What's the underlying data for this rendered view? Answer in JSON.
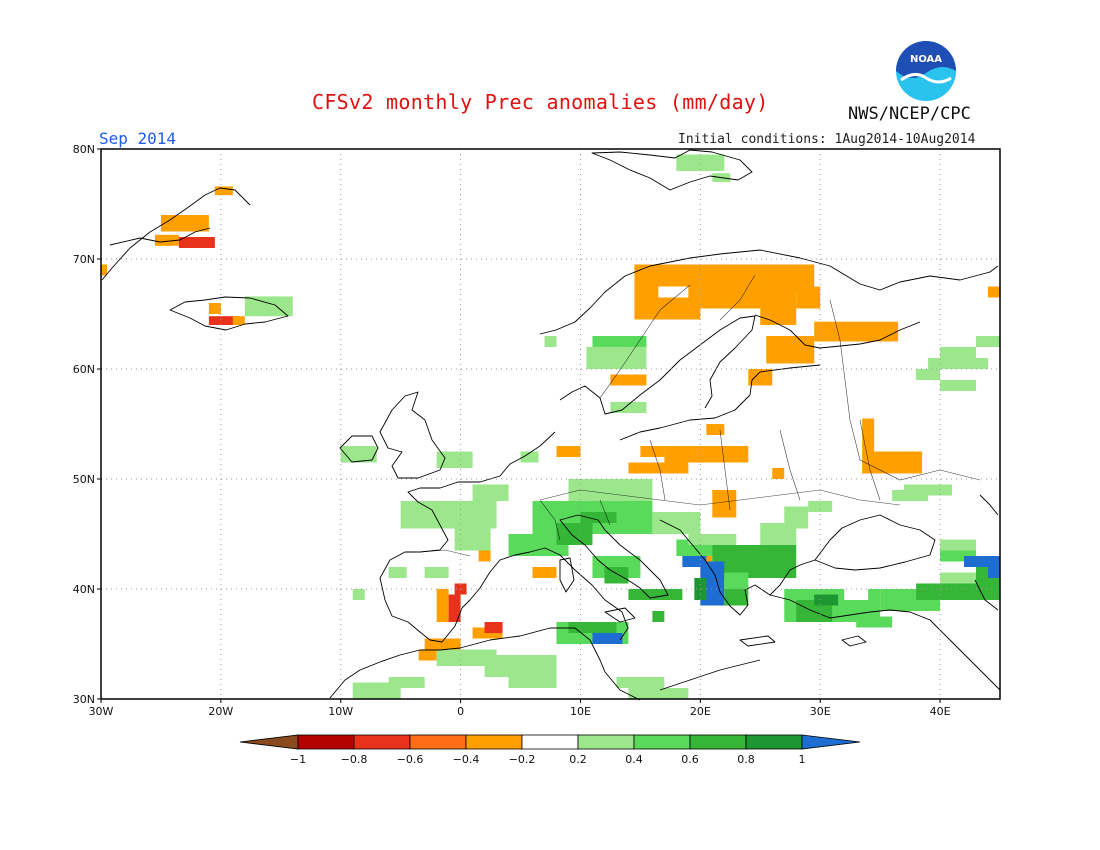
{
  "title": "CFSv2 monthly Prec anomalies (mm/day)",
  "agency": "NWS/NCEP/CPC",
  "logo_text": "NOAA",
  "forecast_month": "Sep 2014",
  "initial_conditions": "Initial conditions: 1Aug2014-10Aug2014",
  "map": {
    "lon_range": [
      -30,
      45
    ],
    "lat_range": [
      30,
      80
    ],
    "lat_ticks": [
      {
        "value": 80,
        "label": "80N"
      },
      {
        "value": 70,
        "label": "70N"
      },
      {
        "value": 60,
        "label": "60N"
      },
      {
        "value": 50,
        "label": "50N"
      },
      {
        "value": 40,
        "label": "40N"
      },
      {
        "value": 30,
        "label": "30N"
      }
    ],
    "lon_ticks": [
      {
        "value": -30,
        "label": "30W"
      },
      {
        "value": -20,
        "label": "20W"
      },
      {
        "value": -10,
        "label": "10W"
      },
      {
        "value": 0,
        "label": "0"
      },
      {
        "value": 10,
        "label": "10E"
      },
      {
        "value": 20,
        "label": "20E"
      },
      {
        "value": 30,
        "label": "30E"
      },
      {
        "value": 40,
        "label": "40E"
      }
    ]
  },
  "colors": {
    "b_m1": "#8a4a1e",
    "b_m08": "#b50000",
    "b_m06": "#e8321c",
    "b_m04": "#ff6e14",
    "b_m02": "#ffa000",
    "b_0": "#ffffff",
    "b_p02": "#9ce68c",
    "b_p04": "#5ada5a",
    "b_p06": "#36b636",
    "b_p08": "#1e9632",
    "b_p1": "#1e6ed2",
    "coast": "#000000",
    "grid": "#999999",
    "logo_blue": "#1f4fb4",
    "logo_cyan": "#29c3ee"
  },
  "colorbar": {
    "bins": [
      "b_m1",
      "b_m08",
      "b_m06",
      "b_m04",
      "b_m02",
      "b_0",
      "b_p02",
      "b_p04",
      "b_p06",
      "b_p08",
      "b_p1"
    ],
    "labels": [
      "−1",
      "−0.8",
      "−0.6",
      "−0.4",
      "−0.2",
      "0.2",
      "0.4",
      "0.6",
      "0.8",
      "1"
    ]
  },
  "anomaly_cells": [
    {
      "lon": -25,
      "lat": 72.5,
      "w": 4,
      "h": 1.5,
      "c": "b_m02"
    },
    {
      "lon": -25.5,
      "lat": 71.2,
      "w": 2,
      "h": 1,
      "c": "b_m02"
    },
    {
      "lon": -23.5,
      "lat": 71,
      "w": 3,
      "h": 1,
      "c": "b_m06"
    },
    {
      "lon": -20.5,
      "lat": 75.8,
      "w": 1.5,
      "h": 0.8,
      "c": "b_m02"
    },
    {
      "lon": -30,
      "lat": 68.5,
      "w": 0.5,
      "h": 1,
      "c": "b_m02"
    },
    {
      "lon": -21,
      "lat": 65,
      "w": 1,
      "h": 1,
      "c": "b_m02"
    },
    {
      "lon": -21,
      "lat": 64,
      "w": 2.5,
      "h": 0.8,
      "c": "b_m06"
    },
    {
      "lon": -19,
      "lat": 64,
      "w": 1,
      "h": 0.8,
      "c": "b_m02"
    },
    {
      "lon": -18,
      "lat": 64.8,
      "w": 4,
      "h": 1.8,
      "c": "b_p02"
    },
    {
      "lon": 18,
      "lat": 78,
      "w": 4,
      "h": 1.5,
      "c": "b_p02"
    },
    {
      "lon": 21,
      "lat": 77,
      "w": 1.5,
      "h": 0.8,
      "c": "b_p02"
    },
    {
      "lon": 14.5,
      "lat": 67,
      "w": 15,
      "h": 2.5,
      "c": "b_m02"
    },
    {
      "lon": 14.5,
      "lat": 64.5,
      "w": 5.5,
      "h": 2.5,
      "c": "b_m02"
    },
    {
      "lon": 16.5,
      "lat": 66.5,
      "w": 2.5,
      "h": 1,
      "c": "b_0"
    },
    {
      "lon": 20,
      "lat": 65.5,
      "w": 8,
      "h": 3,
      "c": "b_m02"
    },
    {
      "lon": 25,
      "lat": 64,
      "w": 3,
      "h": 2,
      "c": "b_m02"
    },
    {
      "lon": 28,
      "lat": 65.5,
      "w": 2,
      "h": 2,
      "c": "b_m02"
    },
    {
      "lon": 29.5,
      "lat": 62.5,
      "w": 7,
      "h": 1.8,
      "c": "b_m02"
    },
    {
      "lon": 25.5,
      "lat": 60.5,
      "w": 4,
      "h": 2.5,
      "c": "b_m02"
    },
    {
      "lon": 44,
      "lat": 66.5,
      "w": 1,
      "h": 1,
      "c": "b_m02"
    },
    {
      "lon": 24,
      "lat": 58.5,
      "w": 2,
      "h": 1.5,
      "c": "b_m02"
    },
    {
      "lon": 12.5,
      "lat": 58.5,
      "w": 3,
      "h": 1,
      "c": "b_m02"
    },
    {
      "lon": 17,
      "lat": 51.5,
      "w": 7,
      "h": 1.5,
      "c": "b_m02"
    },
    {
      "lon": 14,
      "lat": 50.5,
      "w": 5,
      "h": 1,
      "c": "b_m02"
    },
    {
      "lon": 15,
      "lat": 52,
      "w": 2,
      "h": 1,
      "c": "b_m02"
    },
    {
      "lon": 20.5,
      "lat": 54,
      "w": 1.5,
      "h": 1,
      "c": "b_m02"
    },
    {
      "lon": 8,
      "lat": 52,
      "w": 2,
      "h": 1,
      "c": "b_m02"
    },
    {
      "lon": 33.5,
      "lat": 50.5,
      "w": 5,
      "h": 2,
      "c": "b_m02"
    },
    {
      "lon": 33.5,
      "lat": 52.5,
      "w": 1,
      "h": 3,
      "c": "b_m02"
    },
    {
      "lon": 21,
      "lat": 46.5,
      "w": 2,
      "h": 2.5,
      "c": "b_m02"
    },
    {
      "lon": 26,
      "lat": 50,
      "w": 1,
      "h": 1,
      "c": "b_m02"
    },
    {
      "lon": 1.5,
      "lat": 42.5,
      "w": 1,
      "h": 1,
      "c": "b_m02"
    },
    {
      "lon": -2,
      "lat": 37,
      "w": 1,
      "h": 3,
      "c": "b_m02"
    },
    {
      "lon": -1,
      "lat": 37,
      "w": 1,
      "h": 2.5,
      "c": "b_m06"
    },
    {
      "lon": -0.5,
      "lat": 39.5,
      "w": 1,
      "h": 1,
      "c": "b_m06"
    },
    {
      "lon": 1,
      "lat": 35.5,
      "w": 2.5,
      "h": 1,
      "c": "b_m02"
    },
    {
      "lon": -3,
      "lat": 34.5,
      "w": 3,
      "h": 1,
      "c": "b_m02"
    },
    {
      "lon": -3.5,
      "lat": 33.5,
      "w": 1.5,
      "h": 1,
      "c": "b_m02"
    },
    {
      "lon": 2,
      "lat": 36,
      "w": 1.5,
      "h": 1,
      "c": "b_m06"
    },
    {
      "lon": 19.5,
      "lat": 42.5,
      "w": 1.5,
      "h": 1,
      "c": "b_m02"
    },
    {
      "lon": 6,
      "lat": 41,
      "w": 2,
      "h": 1,
      "c": "b_m02"
    },
    {
      "lon": 10.5,
      "lat": 60,
      "w": 5,
      "h": 2,
      "c": "b_p02"
    },
    {
      "lon": 11,
      "lat": 62,
      "w": 4.5,
      "h": 1,
      "c": "b_p04"
    },
    {
      "lon": 7,
      "lat": 62,
      "w": 1,
      "h": 1,
      "c": "b_p02"
    },
    {
      "lon": 12.5,
      "lat": 56,
      "w": 3,
      "h": 1,
      "c": "b_p02"
    },
    {
      "lon": -10,
      "lat": 51.5,
      "w": 3,
      "h": 1.5,
      "c": "b_p02"
    },
    {
      "lon": -2,
      "lat": 51,
      "w": 3,
      "h": 1.5,
      "c": "b_p02"
    },
    {
      "lon": 5,
      "lat": 51.5,
      "w": 1.5,
      "h": 1,
      "c": "b_p02"
    },
    {
      "lon": -5,
      "lat": 45.5,
      "w": 8,
      "h": 2.5,
      "c": "b_p02"
    },
    {
      "lon": -0.5,
      "lat": 43.5,
      "w": 3,
      "h": 2,
      "c": "b_p02"
    },
    {
      "lon": 1,
      "lat": 48,
      "w": 3,
      "h": 1.5,
      "c": "b_p02"
    },
    {
      "lon": 4,
      "lat": 43,
      "w": 5,
      "h": 2,
      "c": "b_p04"
    },
    {
      "lon": 6,
      "lat": 45,
      "w": 10,
      "h": 3,
      "c": "b_p04"
    },
    {
      "lon": 9,
      "lat": 48,
      "w": 7,
      "h": 2,
      "c": "b_p02"
    },
    {
      "lon": 8,
      "lat": 44,
      "w": 3,
      "h": 2,
      "c": "b_p06"
    },
    {
      "lon": 10,
      "lat": 46,
      "w": 3,
      "h": 1,
      "c": "b_p06"
    },
    {
      "lon": 16,
      "lat": 45,
      "w": 4,
      "h": 2,
      "c": "b_p02"
    },
    {
      "lon": 11,
      "lat": 41,
      "w": 4,
      "h": 2,
      "c": "b_p04"
    },
    {
      "lon": 12,
      "lat": 40.5,
      "w": 2,
      "h": 1.5,
      "c": "b_p06"
    },
    {
      "lon": 14,
      "lat": 39,
      "w": 3.5,
      "h": 1,
      "c": "b_p06"
    },
    {
      "lon": 16.5,
      "lat": 39,
      "w": 2,
      "h": 1,
      "c": "b_p06"
    },
    {
      "lon": 16,
      "lat": 37,
      "w": 1,
      "h": 1,
      "c": "b_p06"
    },
    {
      "lon": 18,
      "lat": 43,
      "w": 4,
      "h": 1.5,
      "c": "b_p04"
    },
    {
      "lon": 19,
      "lat": 44,
      "w": 4,
      "h": 1,
      "c": "b_p02"
    },
    {
      "lon": 21,
      "lat": 41,
      "w": 7,
      "h": 3,
      "c": "b_p06"
    },
    {
      "lon": 23,
      "lat": 43,
      "w": 3,
      "h": 1,
      "c": "b_p06"
    },
    {
      "lon": 25,
      "lat": 44,
      "w": 3,
      "h": 2,
      "c": "b_p02"
    },
    {
      "lon": 27,
      "lat": 45.5,
      "w": 2,
      "h": 2,
      "c": "b_p02"
    },
    {
      "lon": 29,
      "lat": 47,
      "w": 2,
      "h": 1,
      "c": "b_p02"
    },
    {
      "lon": 18.5,
      "lat": 42,
      "w": 2,
      "h": 1,
      "c": "b_p1"
    },
    {
      "lon": 20,
      "lat": 38.5,
      "w": 2,
      "h": 4,
      "c": "b_p1"
    },
    {
      "lon": 19.5,
      "lat": 39,
      "w": 1,
      "h": 2,
      "c": "b_p08"
    },
    {
      "lon": 22,
      "lat": 38.5,
      "w": 2,
      "h": 2,
      "c": "b_p06"
    },
    {
      "lon": 22,
      "lat": 40,
      "w": 2,
      "h": 1.5,
      "c": "b_p04"
    },
    {
      "lon": 27,
      "lat": 37,
      "w": 8,
      "h": 3,
      "c": "b_p04"
    },
    {
      "lon": 28,
      "lat": 37,
      "w": 3,
      "h": 2,
      "c": "b_p06"
    },
    {
      "lon": 29.5,
      "lat": 38.5,
      "w": 2,
      "h": 1,
      "c": "b_p08"
    },
    {
      "lon": 32,
      "lat": 39,
      "w": 2,
      "h": 1,
      "c": "b_0"
    },
    {
      "lon": 33,
      "lat": 36.5,
      "w": 3,
      "h": 1,
      "c": "b_p04"
    },
    {
      "lon": 35,
      "lat": 38,
      "w": 5,
      "h": 2,
      "c": "b_p04"
    },
    {
      "lon": 38,
      "lat": 39,
      "w": 7,
      "h": 1.5,
      "c": "b_p06"
    },
    {
      "lon": 40,
      "lat": 40.5,
      "w": 5,
      "h": 1,
      "c": "b_p02"
    },
    {
      "lon": 40,
      "lat": 42.5,
      "w": 3,
      "h": 1,
      "c": "b_p04"
    },
    {
      "lon": 43,
      "lat": 40,
      "w": 2,
      "h": 2.5,
      "c": "b_p06"
    },
    {
      "lon": 40,
      "lat": 43.5,
      "w": 3,
      "h": 1,
      "c": "b_p02"
    },
    {
      "lon": 42,
      "lat": 42,
      "w": 3,
      "h": 1,
      "c": "b_p1"
    },
    {
      "lon": 44,
      "lat": 41,
      "w": 1,
      "h": 1.5,
      "c": "b_p1"
    },
    {
      "lon": 36,
      "lat": 48,
      "w": 3,
      "h": 1,
      "c": "b_p02"
    },
    {
      "lon": 37,
      "lat": 48.5,
      "w": 4,
      "h": 1,
      "c": "b_p02"
    },
    {
      "lon": 40,
      "lat": 58,
      "w": 3,
      "h": 1,
      "c": "b_p02"
    },
    {
      "lon": 38,
      "lat": 59,
      "w": 2,
      "h": 1,
      "c": "b_p02"
    },
    {
      "lon": 39,
      "lat": 60,
      "w": 5,
      "h": 1,
      "c": "b_p02"
    },
    {
      "lon": 40,
      "lat": 61,
      "w": 3,
      "h": 1,
      "c": "b_p02"
    },
    {
      "lon": 43,
      "lat": 62,
      "w": 2,
      "h": 1,
      "c": "b_p02"
    },
    {
      "lon": 8,
      "lat": 35,
      "w": 6,
      "h": 2,
      "c": "b_p04"
    },
    {
      "lon": 11,
      "lat": 35,
      "w": 2.5,
      "h": 1,
      "c": "b_p1"
    },
    {
      "lon": 9,
      "lat": 36,
      "w": 4,
      "h": 1,
      "c": "b_p06"
    },
    {
      "lon": -2,
      "lat": 33,
      "w": 5,
      "h": 1.5,
      "c": "b_p02"
    },
    {
      "lon": 2,
      "lat": 32,
      "w": 6,
      "h": 2,
      "c": "b_p02"
    },
    {
      "lon": 4,
      "lat": 31,
      "w": 4,
      "h": 1,
      "c": "b_p02"
    },
    {
      "lon": -9,
      "lat": 30,
      "w": 4,
      "h": 1.5,
      "c": "b_p02"
    },
    {
      "lon": -6,
      "lat": 31,
      "w": 3,
      "h": 1,
      "c": "b_p02"
    },
    {
      "lon": 13,
      "lat": 31,
      "w": 4,
      "h": 1,
      "c": "b_p02"
    },
    {
      "lon": 14,
      "lat": 30,
      "w": 5,
      "h": 1,
      "c": "b_p02"
    },
    {
      "lon": -9,
      "lat": 39,
      "w": 1,
      "h": 1,
      "c": "b_p02"
    },
    {
      "lon": -6,
      "lat": 41,
      "w": 1.5,
      "h": 1,
      "c": "b_p02"
    },
    {
      "lon": -3,
      "lat": 41,
      "w": 2,
      "h": 1,
      "c": "b_p02"
    }
  ]
}
